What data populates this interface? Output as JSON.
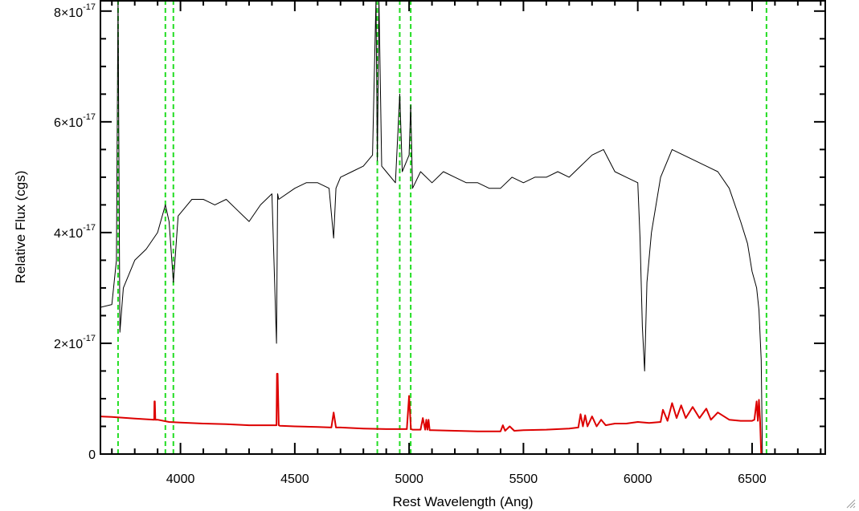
{
  "chart_data": {
    "type": "line",
    "title": "",
    "xlabel": "Rest Wavelength (Ang)",
    "ylabel": "Relative Flux (cgs)",
    "xlim": [
      3650,
      6820
    ],
    "ylim": [
      0,
      8.2e-17
    ],
    "x_ticks": [
      {
        "value": 4000,
        "label": "4000"
      },
      {
        "value": 4500,
        "label": "4500"
      },
      {
        "value": 5000,
        "label": "5000"
      },
      {
        "value": 5500,
        "label": "5500"
      },
      {
        "value": 6000,
        "label": "6000"
      },
      {
        "value": 6500,
        "label": "6500"
      }
    ],
    "y_ticks": [
      {
        "value": 0,
        "label": "0",
        "mantissa": "0",
        "exponent": ""
      },
      {
        "value": 2e-17,
        "label": "2×10-17",
        "mantissa": "2×10",
        "exponent": "-17"
      },
      {
        "value": 4e-17,
        "label": "4×10-17",
        "mantissa": "4×10",
        "exponent": "-17"
      },
      {
        "value": 6e-17,
        "label": "6×10-17",
        "mantissa": "6×10",
        "exponent": "-17"
      },
      {
        "value": 8e-17,
        "label": "8×10-17",
        "mantissa": "8×10",
        "exponent": "-17"
      }
    ],
    "vertical_lines": [
      3727,
      3934,
      3969,
      4861,
      4959,
      5007,
      6563
    ],
    "colors": {
      "spectrum": "#000000",
      "model": "#dd0000",
      "lines": "#22dd22",
      "axes": "#000000"
    },
    "series": [
      {
        "role": "observed spectrum",
        "color": "#000000",
        "x": [
          3650,
          3700,
          3720,
          3727,
          3735,
          3750,
          3800,
          3850,
          3900,
          3934,
          3950,
          3969,
          3990,
          4050,
          4100,
          4150,
          4200,
          4250,
          4300,
          4350,
          4400,
          4420,
          4425,
          4430,
          4500,
          4550,
          4600,
          4650,
          4670,
          4680,
          4700,
          4750,
          4800,
          4840,
          4855,
          4861,
          4868,
          4880,
          4900,
          4940,
          4959,
          4970,
          5000,
          5007,
          5015,
          5050,
          5100,
          5150,
          5200,
          5250,
          5300,
          5350,
          5400,
          5450,
          5500,
          5550,
          5600,
          5650,
          5700,
          5750,
          5800,
          5850,
          5900,
          5950,
          6000,
          6010,
          6020,
          6030,
          6040,
          6060,
          6100,
          6150,
          6200,
          6250,
          6300,
          6350,
          6400,
          6450,
          6480,
          6500,
          6520,
          6530,
          6540,
          6545
        ],
        "y": [
          2.65e-17,
          2.7e-17,
          3.5e-17,
          8.5e-17,
          2.2e-17,
          3e-17,
          3.5e-17,
          3.7e-17,
          4e-17,
          4.5e-17,
          4.2e-17,
          3.1e-17,
          4.3e-17,
          4.6e-17,
          4.6e-17,
          4.5e-17,
          4.6e-17,
          4.4e-17,
          4.2e-17,
          4.5e-17,
          4.7e-17,
          2e-17,
          4.7e-17,
          4.6e-17,
          4.8e-17,
          4.9e-17,
          4.9e-17,
          4.8e-17,
          3.9e-17,
          4.8e-17,
          5e-17,
          5.1e-17,
          5.2e-17,
          5.4e-17,
          8.5e-17,
          5.3e-17,
          8.5e-17,
          5.2e-17,
          5.1e-17,
          4.9e-17,
          6.5e-17,
          5.1e-17,
          5.4e-17,
          6.3e-17,
          4.8e-17,
          5.1e-17,
          4.9e-17,
          5.1e-17,
          5e-17,
          4.9e-17,
          4.9e-17,
          4.8e-17,
          4.8e-17,
          5e-17,
          4.9e-17,
          5e-17,
          5e-17,
          5.1e-17,
          5e-17,
          5.2e-17,
          5.4e-17,
          5.5e-17,
          5.1e-17,
          5e-17,
          4.9e-17,
          3.9e-17,
          2.3e-17,
          1.5e-17,
          3.1e-17,
          4e-17,
          5e-17,
          5.5e-17,
          5.4e-17,
          5.3e-17,
          5.2e-17,
          5.1e-17,
          4.8e-17,
          4.2e-17,
          3.8e-17,
          3.3e-17,
          3e-17,
          2.6e-17,
          1.7e-17,
          0.0
        ]
      },
      {
        "role": "model / sky",
        "color": "#dd0000",
        "x": [
          3650,
          3700,
          3800,
          3885,
          3886,
          3888,
          3890,
          3900,
          3950,
          4000,
          4100,
          4200,
          4300,
          4400,
          4420,
          4422,
          4425,
          4430,
          4435,
          4500,
          4600,
          4660,
          4670,
          4680,
          4700,
          4800,
          4900,
          4950,
          4990,
          5000,
          5008,
          5015,
          5050,
          5060,
          5070,
          5075,
          5080,
          5085,
          5090,
          5100,
          5200,
          5300,
          5350,
          5400,
          5410,
          5420,
          5440,
          5460,
          5500,
          5600,
          5700,
          5740,
          5750,
          5760,
          5770,
          5780,
          5800,
          5820,
          5840,
          5860,
          5900,
          5950,
          6000,
          6050,
          6100,
          6110,
          6130,
          6150,
          6170,
          6190,
          6210,
          6240,
          6270,
          6300,
          6320,
          6350,
          6400,
          6450,
          6500,
          6510,
          6520,
          6525,
          6530,
          6535,
          6540,
          6820
        ],
        "y": [
          6.8e-18,
          6.7e-18,
          6.4e-18,
          6.2e-18,
          9.5e-18,
          9.5e-18,
          6.2e-18,
          6.2e-18,
          5.8e-18,
          5.7e-18,
          5.5e-18,
          5.4e-18,
          5.2e-18,
          5.2e-18,
          5.2e-18,
          1.45e-17,
          1.45e-17,
          5.2e-18,
          5.1e-18,
          5e-18,
          4.9e-18,
          4.8e-18,
          7.5e-18,
          4.8e-18,
          4.8e-18,
          4.6e-18,
          4.5e-18,
          4.5e-18,
          4.5e-18,
          1.05e-17,
          4.5e-18,
          4.4e-18,
          4.4e-18,
          6.5e-18,
          4.4e-18,
          6.2e-18,
          4.4e-18,
          6.2e-18,
          4.3e-18,
          4.3e-18,
          4.2e-18,
          4.1e-18,
          4.1e-18,
          4.1e-18,
          5.2e-18,
          4.2e-18,
          5e-18,
          4.2e-18,
          4.3e-18,
          4.4e-18,
          4.6e-18,
          4.8e-18,
          7.2e-18,
          5e-18,
          7e-18,
          5e-18,
          6.8e-18,
          5e-18,
          6.2e-18,
          5.2e-18,
          5.5e-18,
          5.5e-18,
          5.8e-18,
          5.6e-18,
          5.8e-18,
          8e-18,
          6e-18,
          9.2e-18,
          6.5e-18,
          8.8e-18,
          6.5e-18,
          8.5e-18,
          6.5e-18,
          8.2e-18,
          6.2e-18,
          7.5e-18,
          6.2e-18,
          6e-18,
          6e-18,
          6.2e-18,
          9.5e-18,
          6e-18,
          9.8e-18,
          6e-18,
          0.0,
          0.0
        ]
      }
    ]
  }
}
